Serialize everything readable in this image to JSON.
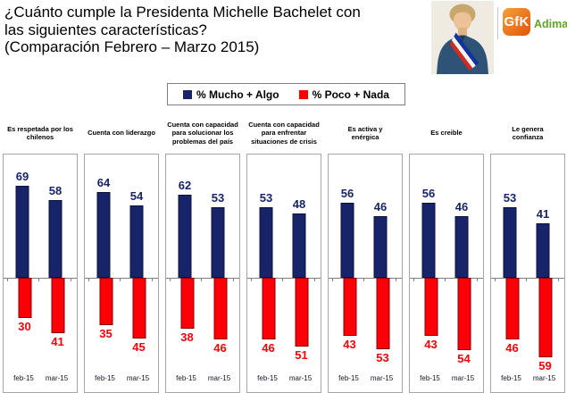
{
  "title": {
    "line1": "¿Cuánto cumple la Presidenta Michelle Bachelet con",
    "line2": "las siguientes características?",
    "line3": "(Comparación Febrero – Marzo 2015)"
  },
  "brand": {
    "gfk": "GfK",
    "adimark": "Adimark",
    "orange": "#EF7D22",
    "green": "#64A424"
  },
  "chart_data": {
    "type": "bar",
    "subtype": "diverging-paired-columns",
    "categories": [
      "feb-15",
      "mar-15"
    ],
    "series_names": [
      "% Mucho + Algo",
      "% Poco + Nada"
    ],
    "colors": {
      "mucho_algo": "#17246A",
      "poco_nada": "#FB0007"
    },
    "value_unit": "percent",
    "panels": [
      {
        "title": "Es respetada por los\nchilenos",
        "mucho_algo": [
          69,
          58
        ],
        "poco_nada": [
          30,
          41
        ]
      },
      {
        "title": "Cuenta con liderazgo",
        "mucho_algo": [
          64,
          54
        ],
        "poco_nada": [
          35,
          45
        ]
      },
      {
        "title": "Cuenta con capacidad\npara solucionar los\nproblemas del país",
        "mucho_algo": [
          62,
          53
        ],
        "poco_nada": [
          38,
          46
        ]
      },
      {
        "title": "Cuenta con capacidad\npara enfrentar\nsituaciones de crisis",
        "mucho_algo": [
          53,
          48
        ],
        "poco_nada": [
          46,
          51
        ]
      },
      {
        "title": "Es activa y\nenérgica",
        "mucho_algo": [
          56,
          46
        ],
        "poco_nada": [
          43,
          53
        ]
      },
      {
        "title": "Es creible",
        "mucho_algo": [
          56,
          46
        ],
        "poco_nada": [
          43,
          54
        ]
      },
      {
        "title": "Le genera\nconfianza",
        "mucho_algo": [
          53,
          41
        ],
        "poco_nada": [
          46,
          59
        ]
      }
    ]
  }
}
